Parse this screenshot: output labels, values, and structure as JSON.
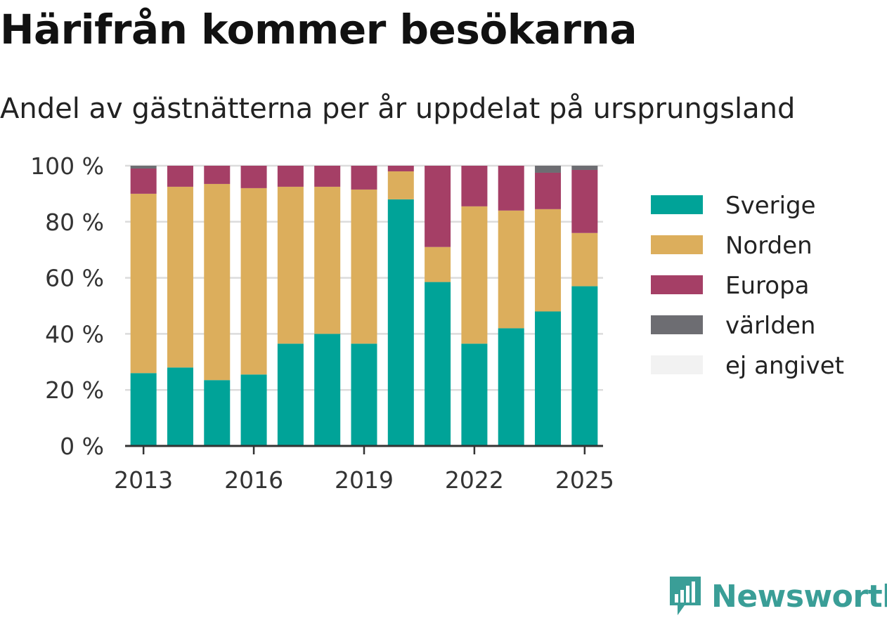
{
  "title": "Härifrån kommer besökarna",
  "subtitle": "Andel av gästnätterna per år uppdelat på ursprungsland",
  "brand": {
    "name": "Newsworthy",
    "color": "#3a9e97",
    "icon": "bar-chart-speech-bubble-icon"
  },
  "chart_data": {
    "type": "bar",
    "stacked": true,
    "title": "",
    "xlabel": "",
    "ylabel": "",
    "ylim": [
      0,
      100
    ],
    "y_ticks": [
      0,
      20,
      40,
      60,
      80,
      100
    ],
    "y_tick_labels": [
      "0 %",
      "20 %",
      "40 %",
      "60 %",
      "80 %",
      "100 %"
    ],
    "x_tick_labels": [
      "2013",
      "2016",
      "2019",
      "2022",
      "2025"
    ],
    "grid": "horizontal",
    "legend_position": "right",
    "categories": [
      "2013",
      "2014",
      "2015",
      "2016",
      "2017",
      "2018",
      "2019",
      "2020",
      "2021",
      "2022",
      "2023",
      "2024",
      "2025"
    ],
    "series": [
      {
        "name": "Sverige",
        "color": "#00a398",
        "values": [
          26,
          28,
          23.5,
          25.5,
          36.5,
          40,
          36.5,
          88,
          58.5,
          36.5,
          42,
          48,
          57
        ]
      },
      {
        "name": "Norden",
        "color": "#dcae5c",
        "values": [
          64,
          64.5,
          70,
          66.5,
          56,
          52.5,
          55,
          10,
          12.5,
          49,
          42,
          36.5,
          19
        ]
      },
      {
        "name": "Europa",
        "color": "#a53f66",
        "values": [
          9,
          7.5,
          6.5,
          8,
          7.5,
          7.5,
          8.5,
          2,
          29,
          14.5,
          16,
          13,
          22.5
        ]
      },
      {
        "name": "världen",
        "color": "#6d6d72",
        "values": [
          1,
          0,
          0,
          0,
          0,
          0,
          0,
          0,
          0,
          0,
          0,
          2.5,
          1.5
        ]
      },
      {
        "name": "ej angivet",
        "color": "#f2f2f2",
        "values": [
          0,
          0,
          0,
          0,
          0,
          0,
          0,
          0,
          0,
          0,
          0,
          0,
          0
        ]
      }
    ]
  }
}
